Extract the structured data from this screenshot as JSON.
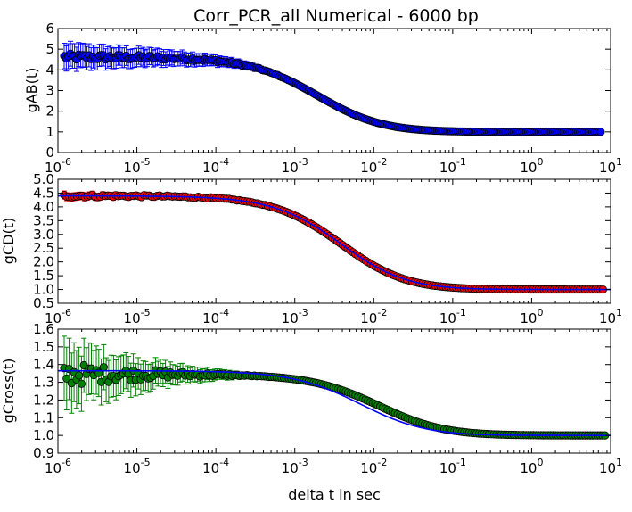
{
  "figure": {
    "title": "Corr_PCR_all Numerical - 6000 bp",
    "xlabel": "delta t in sec"
  },
  "colors": {
    "panel1_marker": "#0000ff",
    "panel2_marker": "#ff0000",
    "panel3_marker": "#008000",
    "fit_line": "#0000ff",
    "errorbar_blue": "#0000ff",
    "errorbar_red": "#ff0000",
    "errorbar_green": "#008000"
  },
  "chart_data": [
    {
      "type": "scatter",
      "name": "gAB panel",
      "title": "Corr_PCR_all Numerical - 6000 bp",
      "xlabel": "",
      "ylabel": "gAB(t)",
      "xscale": "log",
      "xlim": [
        1e-06,
        10
      ],
      "ylim": [
        0,
        6
      ],
      "yticks": [
        "0",
        "1",
        "2",
        "3",
        "4",
        "5",
        "6"
      ],
      "xticks": [
        {
          "base": "10",
          "exp": "-6"
        },
        {
          "base": "10",
          "exp": "-5"
        },
        {
          "base": "10",
          "exp": "-4"
        },
        {
          "base": "10",
          "exp": "-3"
        },
        {
          "base": "10",
          "exp": "-2"
        },
        {
          "base": "10",
          "exp": "-1"
        },
        {
          "base": "10",
          "exp": "0"
        },
        {
          "base": "10",
          "exp": "1"
        }
      ],
      "marker_color": "#0000ff",
      "errorbars": true,
      "fit_line": false,
      "curve_model": {
        "baseline": 1.0,
        "amplitude": 3.62,
        "tau_d": 0.002,
        "kappa": 0.1,
        "xmin": 1.2e-06,
        "xmax": 7.5,
        "points": 260
      },
      "points_sample": [
        {
          "x": 1e-06,
          "y": 4.75
        },
        {
          "x": 1e-05,
          "y": 4.5
        },
        {
          "x": 0.0001,
          "y": 4.05
        },
        {
          "x": 0.001,
          "y": 3.0
        },
        {
          "x": 0.01,
          "y": 1.85
        },
        {
          "x": 0.1,
          "y": 1.15
        },
        {
          "x": 1,
          "y": 1.0
        },
        {
          "x": 10,
          "y": 1.0
        }
      ]
    },
    {
      "type": "scatter",
      "name": "gCD panel",
      "title": "",
      "xlabel": "",
      "ylabel": "gCD(t)",
      "xscale": "log",
      "xlim": [
        1e-06,
        10
      ],
      "ylim": [
        0.5,
        5.0
      ],
      "yticks": [
        "0.5",
        "1.0",
        "1.5",
        "2.0",
        "2.5",
        "3.0",
        "3.5",
        "4.0",
        "4.5",
        "5.0"
      ],
      "xticks": [
        {
          "base": "10",
          "exp": "-6"
        },
        {
          "base": "10",
          "exp": "-5"
        },
        {
          "base": "10",
          "exp": "-4"
        },
        {
          "base": "10",
          "exp": "-3"
        },
        {
          "base": "10",
          "exp": "-2"
        },
        {
          "base": "10",
          "exp": "-1"
        },
        {
          "base": "10",
          "exp": "0"
        },
        {
          "base": "10",
          "exp": "1"
        }
      ],
      "marker_color": "#ff0000",
      "errorbars": true,
      "fit_line": true,
      "curve_model": {
        "baseline": 1.0,
        "amplitude": 3.4,
        "tau_d": 0.004,
        "kappa": 0.1,
        "xmin": 1.2e-06,
        "xmax": 8.0,
        "points": 210
      },
      "points_sample": [
        {
          "x": 1e-06,
          "y": 4.5
        },
        {
          "x": 1e-05,
          "y": 4.35
        },
        {
          "x": 0.0001,
          "y": 4.15
        },
        {
          "x": 0.001,
          "y": 3.45
        },
        {
          "x": 0.01,
          "y": 2.25
        },
        {
          "x": 0.1,
          "y": 1.25
        },
        {
          "x": 1,
          "y": 1.0
        },
        {
          "x": 10,
          "y": 1.0
        }
      ]
    },
    {
      "type": "scatter",
      "name": "gCross panel",
      "title": "",
      "xlabel": "delta t in sec",
      "ylabel": "gCross(t)",
      "xscale": "log",
      "xlim": [
        1e-06,
        10
      ],
      "ylim": [
        0.9,
        1.6
      ],
      "yticks": [
        "0.9",
        "1.0",
        "1.1",
        "1.2",
        "1.3",
        "1.4",
        "1.5",
        "1.6"
      ],
      "xticks": [
        {
          "base": "10",
          "exp": "-6"
        },
        {
          "base": "10",
          "exp": "-5"
        },
        {
          "base": "10",
          "exp": "-4"
        },
        {
          "base": "10",
          "exp": "-3"
        },
        {
          "base": "10",
          "exp": "-2"
        },
        {
          "base": "10",
          "exp": "-1"
        },
        {
          "base": "10",
          "exp": "0"
        },
        {
          "base": "10",
          "exp": "1"
        }
      ],
      "marker_color": "#008000",
      "errorbars": true,
      "fit_line": true,
      "curve_model": {
        "baseline": 1.0,
        "amplitude": 0.345,
        "tau_d": 0.012,
        "kappa": 0.1,
        "xmin": 1.2e-06,
        "xmax": 8.5,
        "points": 220
      },
      "line_model": {
        "baseline": 1.0,
        "amplitude": 0.365,
        "tau_d": 0.007,
        "kappa": 0.1
      },
      "points_sample": [
        {
          "x": 1e-06,
          "y": 1.37
        },
        {
          "x": 1e-05,
          "y": 1.33
        },
        {
          "x": 0.0001,
          "y": 1.34
        },
        {
          "x": 0.001,
          "y": 1.33
        },
        {
          "x": 0.01,
          "y": 1.28
        },
        {
          "x": 0.1,
          "y": 1.08
        },
        {
          "x": 1,
          "y": 1.0
        },
        {
          "x": 10,
          "y": 1.0
        }
      ]
    }
  ]
}
